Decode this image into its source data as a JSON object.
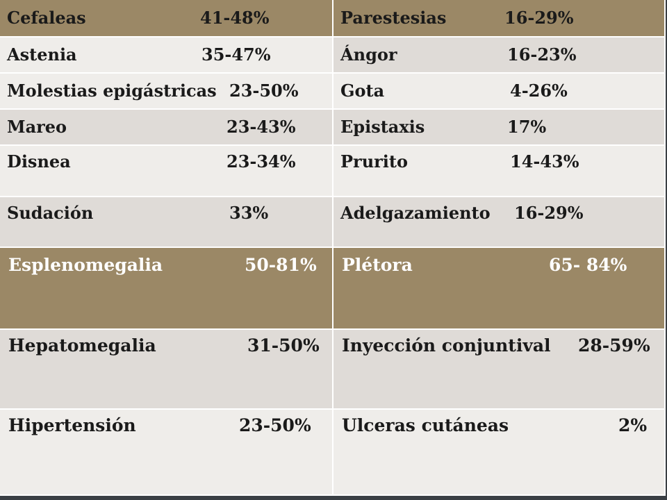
{
  "table1": {
    "rows": [
      {
        "left": {
          "name": "Cefaleas",
          "value": "41-48%"
        },
        "right": {
          "name": "Parestesias",
          "value": "16-29%"
        }
      },
      {
        "left": {
          "name": "Astenia",
          "value": "35-47%"
        },
        "right": {
          "name": "Ángor",
          "value": "16-23%"
        }
      },
      {
        "left": {
          "name": "Molestias epigástricas",
          "value": "23-50%"
        },
        "right": {
          "name": "Gota",
          "value": "4-26%"
        }
      },
      {
        "left": {
          "name": "Mareo",
          "value": "23-43%"
        },
        "right": {
          "name": "Epistaxis",
          "value": "17%"
        }
      },
      {
        "left": {
          "name": "Disnea",
          "value": "23-34%"
        },
        "right": {
          "name": "Prurito",
          "value": "14-43%"
        }
      },
      {
        "left": {
          "name": "Sudación",
          "value": "33%"
        },
        "right": {
          "name": "Adelgazamiento",
          "value": "16-29%"
        }
      }
    ]
  },
  "table2": {
    "rows": [
      {
        "left": {
          "name": "Esplenomegalia",
          "value": "50-81%"
        },
        "right": {
          "name": "Plétora",
          "value": "65- 84%"
        }
      },
      {
        "left": {
          "name": "Hepatomegalia",
          "value": "31-50%"
        },
        "right": {
          "name": "Inyección conjuntival",
          "value": "28-59%"
        }
      },
      {
        "left": {
          "name": "Hipertensión",
          "value": "23-50%"
        },
        "right": {
          "name": "Ulceras cutáneas",
          "value": "2%"
        }
      }
    ]
  },
  "colors": {
    "header": "#9b8866",
    "row_light": "#efedea",
    "row_dark": "#dfdbd7",
    "background": "#3a3f44"
  }
}
